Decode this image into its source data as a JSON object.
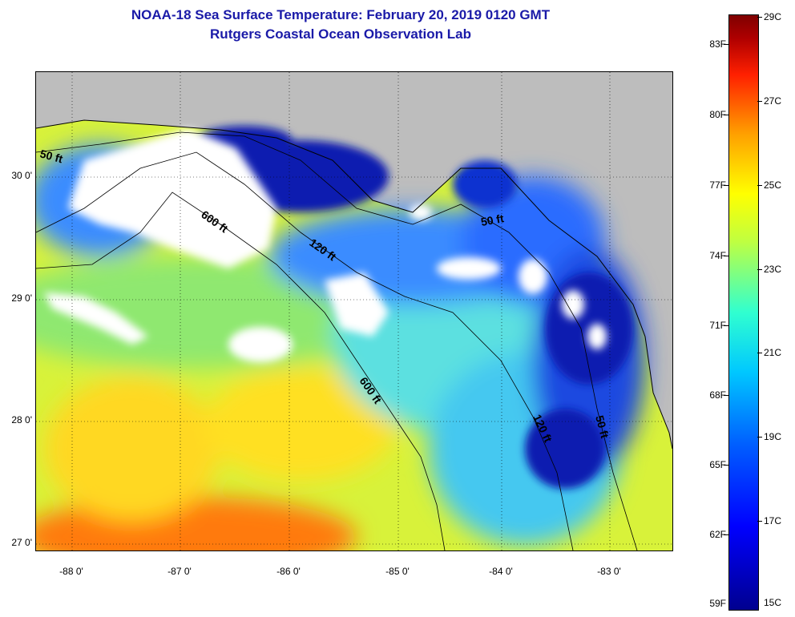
{
  "header": {
    "title": "NOAA-18 Sea Surface Temperature:  February 20, 2019 0120 GMT",
    "subtitle": "Rutgers Coastal Ocean Observation Lab"
  },
  "map": {
    "lat_labels": [
      "30 0'",
      "29 0'",
      "28 0'",
      "27 0'"
    ],
    "lon_labels": [
      "-88 0'",
      "-87 0'",
      "-86 0'",
      "-85 0'",
      "-84 0'",
      "-83 0'"
    ],
    "contour_labels": [
      "50 ft",
      "600 ft",
      "120 ft",
      "50 ft",
      "600 ft",
      "120 ft",
      "50 ft"
    ],
    "colors": {
      "land": "#bdbdbd",
      "cloud": "#ffffff",
      "warm": "#ff7a10",
      "mid": "#e6f53a",
      "cool": "#3aa0ff",
      "cold": "#0a1ab0"
    }
  },
  "colorbar": {
    "fahrenheit": [
      "83F",
      "80F",
      "77F",
      "74F",
      "71F",
      "68F",
      "65F",
      "62F",
      "59F"
    ],
    "celsius": [
      "29C",
      "27C",
      "25C",
      "23C",
      "21C",
      "19C",
      "17C",
      "15C"
    ]
  }
}
